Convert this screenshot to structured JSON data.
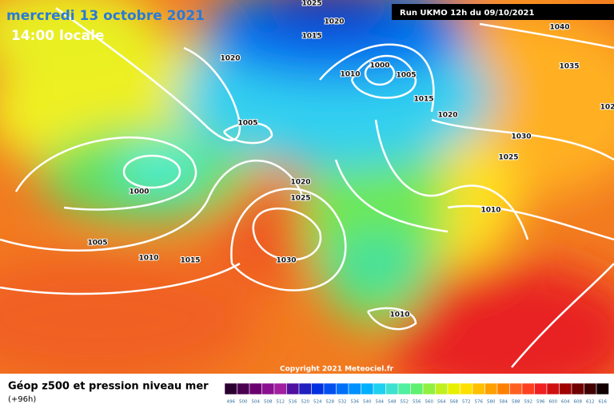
{
  "header": {
    "date": "mercredi 13 octobre 2021",
    "time": "14:00 locale",
    "run": "Run UKMO 12h du 09/10/2021"
  },
  "copyright": "Copyright 2021 Meteociel.fr",
  "footer": {
    "title": "Géop z500 et pression niveau mer",
    "lead": "(+96h)"
  },
  "isobars": [
    "1025",
    "1020",
    "1015",
    "1020",
    "1000",
    "1010",
    "1005",
    "1015",
    "1020",
    "1005",
    "1000",
    "1005",
    "1010",
    "1015",
    "1020",
    "1025",
    "1030",
    "1040",
    "1035",
    "102",
    "1030",
    "1025",
    "1010",
    "1010"
  ],
  "legend": {
    "labels": [
      496,
      500,
      504,
      508,
      512,
      516,
      520,
      524,
      528,
      532,
      536,
      540,
      544,
      548,
      552,
      556,
      560,
      564,
      568,
      572,
      576,
      580,
      584,
      588,
      592,
      596,
      600,
      604,
      608,
      612,
      616
    ],
    "colors": [
      "#2a0030",
      "#4a0050",
      "#6a0070",
      "#8a1090",
      "#a020a0",
      "#5010a0",
      "#2020c0",
      "#0030e0",
      "#0050f0",
      "#0070f8",
      "#0090ff",
      "#00b0ff",
      "#20d0f0",
      "#40e0d0",
      "#50f0a0",
      "#60f070",
      "#90f040",
      "#c0f020",
      "#e8f000",
      "#ffe000",
      "#ffc000",
      "#ffa000",
      "#ff8000",
      "#ff6020",
      "#ff4020",
      "#f02020",
      "#d01010",
      "#a00000",
      "#700000",
      "#400000",
      "#100000"
    ]
  }
}
